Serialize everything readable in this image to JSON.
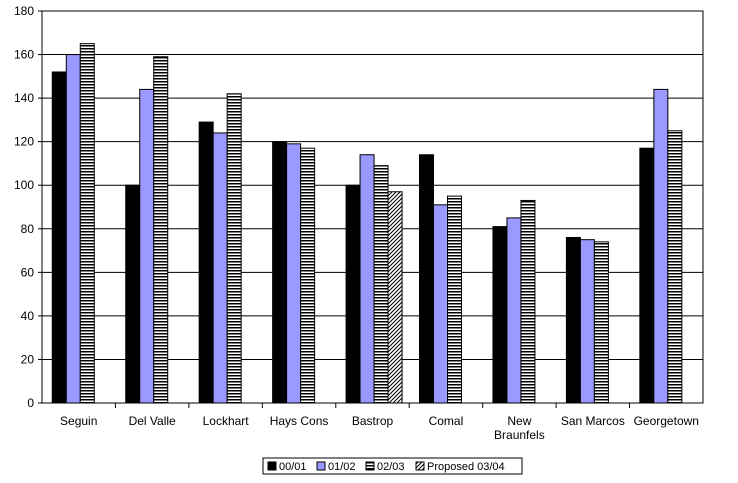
{
  "chart_data": {
    "type": "bar",
    "title": "",
    "xlabel": "",
    "ylabel": "",
    "ylim": [
      0,
      180
    ],
    "yticks": [
      0,
      20,
      40,
      60,
      80,
      100,
      120,
      140,
      160,
      180
    ],
    "grid": true,
    "legend_position": "bottom",
    "categories": [
      [
        "Seguin"
      ],
      [
        "Del Valle"
      ],
      [
        "Lockhart"
      ],
      [
        "Hays Cons"
      ],
      [
        "Bastrop"
      ],
      [
        "Comal"
      ],
      [
        "New",
        "Braunfels"
      ],
      [
        "San Marcos"
      ],
      [
        "Georgetown"
      ]
    ],
    "series": [
      {
        "name": "00/01",
        "fill": "solid",
        "color": "#000000",
        "values": [
          152,
          100,
          129,
          120,
          100,
          114,
          81,
          76,
          117
        ]
      },
      {
        "name": "01/02",
        "fill": "solid",
        "color": "#9999ff",
        "values": [
          160,
          144,
          124,
          119,
          114,
          91,
          85,
          75,
          144
        ]
      },
      {
        "name": "02/03",
        "fill": "horizontal-lines",
        "color": "#000000",
        "values": [
          165,
          159,
          142,
          117,
          109,
          95,
          93,
          74,
          125
        ]
      },
      {
        "name": "Proposed 03/04",
        "fill": "diagonal-lines",
        "color": "#000000",
        "values": [
          null,
          null,
          null,
          null,
          97,
          null,
          null,
          null,
          null
        ]
      }
    ]
  }
}
